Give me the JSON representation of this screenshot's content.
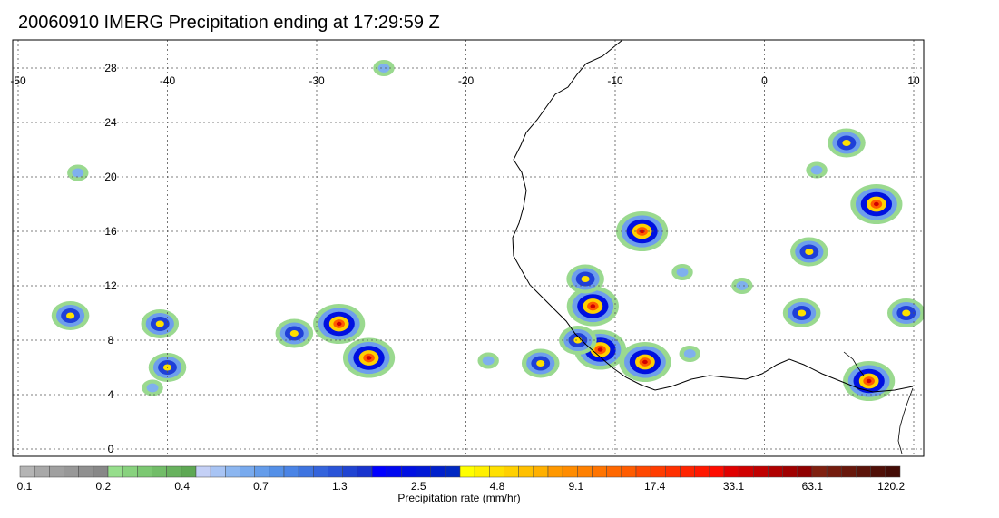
{
  "title": "20060910 IMERG Precipitation ending at 17:29:59 Z",
  "map": {
    "lon_labels": [
      "-50",
      "-40",
      "-30",
      "-20",
      "-10",
      "0",
      "10"
    ],
    "lat_labels": [
      "28",
      "24",
      "20",
      "16",
      "12",
      "8",
      "4",
      "0"
    ],
    "lon_range": [
      -50,
      10
    ],
    "lat_range": [
      -0.5,
      30
    ],
    "grid": true
  },
  "colorbar": {
    "label": "Precipitation rate (mm/hr)",
    "tick_labels": [
      "0.1",
      "0.2",
      "0.4",
      "0.7",
      "1.3",
      "2.5",
      "4.8",
      "9.1",
      "17.4",
      "33.1",
      "63.1",
      "120.2"
    ],
    "colors": [
      "#b4b4b4",
      "#a8a8a8",
      "#a0a0a0",
      "#989898",
      "#909090",
      "#888888",
      "#96de8c",
      "#88d27e",
      "#7cc872",
      "#72bd68",
      "#68b25e",
      "#5ea854",
      "#c4d0f6",
      "#a8c4f4",
      "#8cb6f0",
      "#78aaee",
      "#649cea",
      "#5490e8",
      "#4a84e6",
      "#3e74e0",
      "#3464dc",
      "#2a54d8",
      "#2044d2",
      "#1834ce",
      "#0000ff",
      "#0008f0",
      "#0010e2",
      "#0018d6",
      "#0020cc",
      "#0028c2",
      "#ffff00",
      "#fff000",
      "#ffe000",
      "#ffd000",
      "#ffc000",
      "#ffb000",
      "#ff9800",
      "#ff8c00",
      "#ff8000",
      "#ff7400",
      "#ff6800",
      "#ff5c00",
      "#ff4800",
      "#ff3c00",
      "#ff3000",
      "#ff2400",
      "#ff1800",
      "#ff0c00",
      "#e00000",
      "#d00000",
      "#c00000",
      "#b00000",
      "#a00000",
      "#900000",
      "#802010",
      "#741c0e",
      "#68180c",
      "#5c140a",
      "#501008",
      "#440c06"
    ]
  },
  "precip_cells": [
    {
      "lon": -28.5,
      "lat": 9.2,
      "intensity": "heavy"
    },
    {
      "lon": -26.5,
      "lat": 6.7,
      "intensity": "heavy"
    },
    {
      "lon": -11.5,
      "lat": 10.5,
      "intensity": "heavy"
    },
    {
      "lon": -11.0,
      "lat": 7.3,
      "intensity": "heavy"
    },
    {
      "lon": -8.0,
      "lat": 6.4,
      "intensity": "heavy"
    },
    {
      "lon": -8.2,
      "lat": 16.0,
      "intensity": "heavy"
    },
    {
      "lon": 7.5,
      "lat": 18.0,
      "intensity": "heavy"
    },
    {
      "lon": 7.0,
      "lat": 5.0,
      "intensity": "heavy"
    },
    {
      "lon": -40.5,
      "lat": 9.2,
      "intensity": "moderate"
    },
    {
      "lon": -46.5,
      "lat": 9.8,
      "intensity": "moderate"
    },
    {
      "lon": -40.0,
      "lat": 6.0,
      "intensity": "moderate"
    },
    {
      "lon": -31.5,
      "lat": 8.5,
      "intensity": "moderate"
    },
    {
      "lon": -15.0,
      "lat": 6.3,
      "intensity": "moderate"
    },
    {
      "lon": -12.5,
      "lat": 8.0,
      "intensity": "moderate"
    },
    {
      "lon": -12.0,
      "lat": 12.5,
      "intensity": "moderate"
    },
    {
      "lon": 3.0,
      "lat": 14.5,
      "intensity": "moderate"
    },
    {
      "lon": 5.5,
      "lat": 22.5,
      "intensity": "moderate"
    },
    {
      "lon": 9.5,
      "lat": 10.0,
      "intensity": "moderate"
    },
    {
      "lon": 2.5,
      "lat": 10.0,
      "intensity": "moderate"
    },
    {
      "lon": -25.5,
      "lat": 28.0,
      "intensity": "light"
    },
    {
      "lon": -46.0,
      "lat": 20.3,
      "intensity": "light"
    },
    {
      "lon": -5.5,
      "lat": 13.0,
      "intensity": "light"
    },
    {
      "lon": -1.5,
      "lat": 12.0,
      "intensity": "light"
    },
    {
      "lon": -5.0,
      "lat": 7.0,
      "intensity": "light"
    },
    {
      "lon": -41.0,
      "lat": 4.5,
      "intensity": "light"
    },
    {
      "lon": 3.5,
      "lat": 20.5,
      "intensity": "light"
    },
    {
      "lon": -18.5,
      "lat": 6.5,
      "intensity": "light"
    }
  ]
}
